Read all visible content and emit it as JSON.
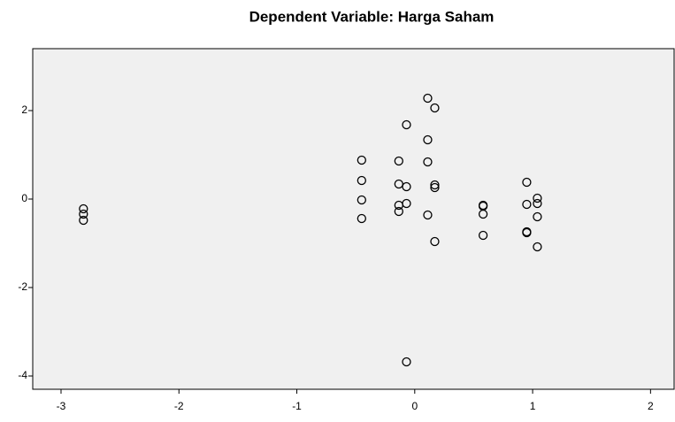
{
  "chart_data": {
    "type": "scatter",
    "title": "Dependent Variable: Harga Saham",
    "x": [
      -2.81,
      -2.81,
      -2.81,
      -0.45,
      -0.45,
      -0.45,
      -0.45,
      -0.135,
      -0.135,
      -0.135,
      -0.135,
      -0.07,
      -0.07,
      -0.07,
      -0.07,
      0.11,
      0.11,
      0.11,
      0.11,
      0.17,
      0.17,
      0.17,
      0.17,
      0.58,
      0.58,
      0.58,
      0.58,
      0.95,
      0.95,
      0.95,
      0.95,
      1.04,
      1.04,
      1.04,
      1.04
    ],
    "values": [
      -0.22,
      -0.34,
      -0.48,
      0.88,
      0.42,
      -0.02,
      -0.44,
      0.86,
      0.34,
      -0.14,
      -0.28,
      1.68,
      0.28,
      -0.1,
      -3.68,
      2.28,
      1.34,
      0.84,
      -0.36,
      2.06,
      0.32,
      0.26,
      -0.96,
      -0.14,
      -0.16,
      -0.34,
      -0.82,
      0.38,
      -0.12,
      -0.74,
      -0.76,
      0.02,
      -0.1,
      -0.4,
      -1.08
    ],
    "color": "#000000",
    "xlim": [
      -3.24,
      2.2
    ],
    "xticks": [
      -3,
      -2,
      -1,
      0,
      1,
      2
    ],
    "ylim": [
      -4.3,
      3.4
    ],
    "yticks": [
      -4,
      -2,
      0,
      2
    ]
  }
}
